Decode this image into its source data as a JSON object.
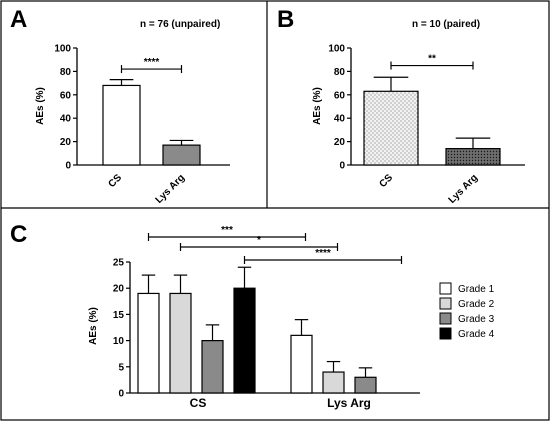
{
  "chart_data": [
    {
      "panel": "A",
      "type": "bar",
      "subtitle": "n = 76 (unpaired)",
      "ylabel": "AEs  (%)",
      "ylim": [
        0,
        100
      ],
      "yticks": [
        0,
        20,
        40,
        60,
        80,
        100
      ],
      "categories": [
        "CS",
        "Lys Arg"
      ],
      "values": [
        68,
        17
      ],
      "errors": [
        5,
        4
      ],
      "fills": [
        "#ffffff",
        "#8a8a8a"
      ],
      "significance": [
        {
          "from": 0,
          "to": 1,
          "label": "****",
          "y": 82
        }
      ]
    },
    {
      "panel": "B",
      "type": "bar",
      "subtitle": "n = 10 (paired)",
      "ylabel": "AEs  (%)",
      "ylim": [
        0,
        100
      ],
      "yticks": [
        0,
        20,
        40,
        60,
        80,
        100
      ],
      "categories": [
        "CS",
        "Lys Arg"
      ],
      "values": [
        63,
        14
      ],
      "errors": [
        12,
        9
      ],
      "fills": [
        "dots-light",
        "dots-dark"
      ],
      "significance": [
        {
          "from": 0,
          "to": 1,
          "label": "**",
          "y": 85
        }
      ]
    },
    {
      "panel": "C",
      "type": "bar",
      "ylabel": "AEs (%)",
      "ylim": [
        0,
        25
      ],
      "yticks": [
        0,
        5,
        10,
        15,
        20,
        25
      ],
      "categories": [
        "CS",
        "Lys Arg"
      ],
      "series": [
        {
          "name": "Grade 1",
          "values": [
            19,
            11
          ],
          "errors": [
            3.5,
            3
          ],
          "color": "#ffffff"
        },
        {
          "name": "Grade 2",
          "values": [
            19,
            4
          ],
          "errors": [
            3.5,
            2
          ],
          "color": "#d9d9d9"
        },
        {
          "name": "Grade 3",
          "values": [
            10,
            3
          ],
          "errors": [
            3,
            1.8
          ],
          "color": "#8a8a8a"
        },
        {
          "name": "Grade 4",
          "values": [
            20,
            0
          ],
          "errors": [
            4,
            0
          ],
          "color": "#000000"
        }
      ],
      "significance": [
        {
          "from_series": 0,
          "label": "***"
        },
        {
          "from_series": 1,
          "label": "*"
        },
        {
          "from_series": 3,
          "label": "****"
        }
      ],
      "legend_position": "right"
    }
  ]
}
